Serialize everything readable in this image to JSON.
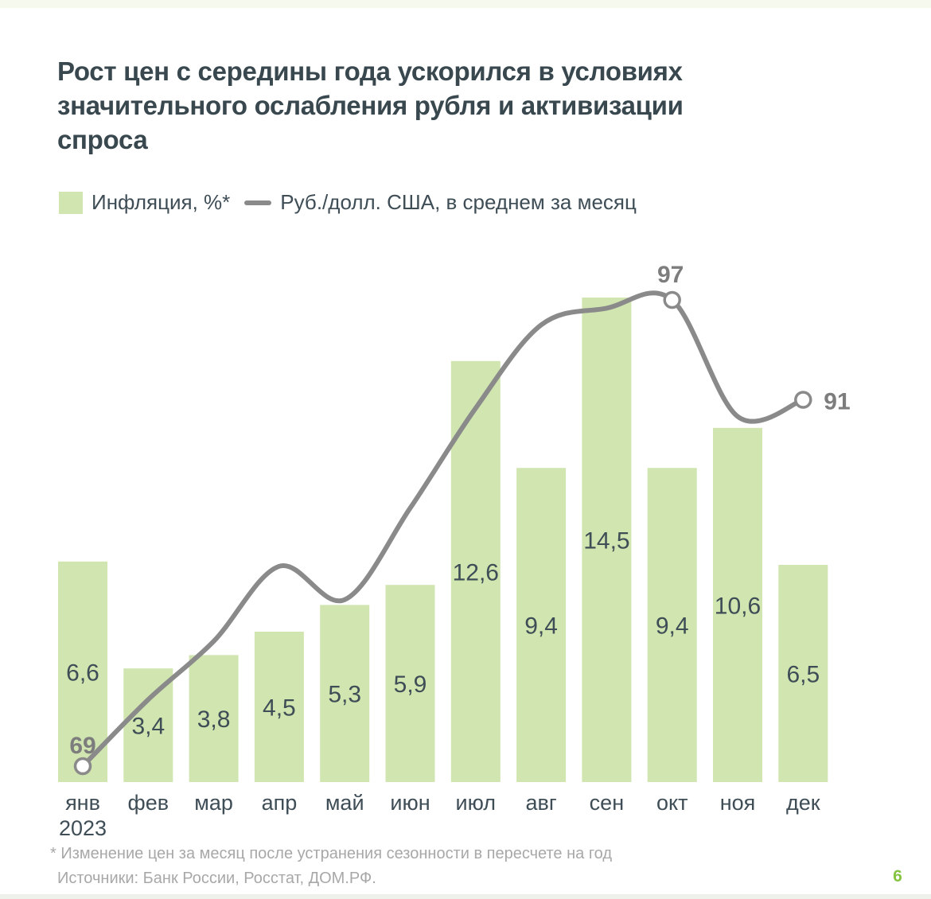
{
  "page": {
    "title_lines": [
      "Рост цен с середины года ускорился в условиях",
      "значительного ослабления рубля и активизации",
      "спроса"
    ],
    "footnote": "* Изменение цен за месяц после устранения сезонности в пересчете на год",
    "sources": "Источники: Банк России, Росстат, ДОМ.РФ.",
    "page_number": "6"
  },
  "legend": [
    {
      "label": "Инфляция, %*"
    },
    {
      "label": "Руб./долл. США, в среднем за месяц"
    }
  ],
  "colors": {
    "bar_fill": "#d0e5b0",
    "line": "#8a8a8a",
    "marker_fill": "#ffffff",
    "point_label": "#7d7d7d",
    "title": "#39484f",
    "label": "#3e4d56",
    "footnote": "#a8a8a8",
    "page_number": "#85c441",
    "top_band": "#f5f9ee",
    "bottom_band": "#eef1ea"
  },
  "chart_data": {
    "type": "bar+line",
    "categories": [
      "янв",
      "фев",
      "мар",
      "апр",
      "май",
      "июн",
      "июл",
      "авг",
      "сен",
      "окт",
      "ноя",
      "дек"
    ],
    "x_sub_label": {
      "index": 0,
      "text": "2023"
    },
    "series": [
      {
        "name": "Инфляция, %*",
        "type": "bar",
        "unit": "%",
        "values": [
          6.6,
          3.4,
          3.8,
          4.5,
          5.3,
          5.9,
          12.6,
          9.4,
          14.5,
          9.4,
          10.6,
          6.5
        ]
      },
      {
        "name": "Руб./долл. США, в среднем за месяц",
        "type": "line",
        "unit": "руб./долл.",
        "values": [
          69,
          73,
          76.5,
          81,
          79,
          84.5,
          90.5,
          95.5,
          96.5,
          97,
          90,
          91
        ],
        "point_labels": [
          {
            "index": 0,
            "text": "69",
            "placement": "above-left"
          },
          {
            "index": 9,
            "text": "97",
            "placement": "above"
          },
          {
            "index": 11,
            "text": "91",
            "placement": "right"
          }
        ]
      }
    ],
    "bar_axis": {
      "min": 0,
      "max": 16.3,
      "gridlines": false
    },
    "legend_position": "top-left"
  }
}
